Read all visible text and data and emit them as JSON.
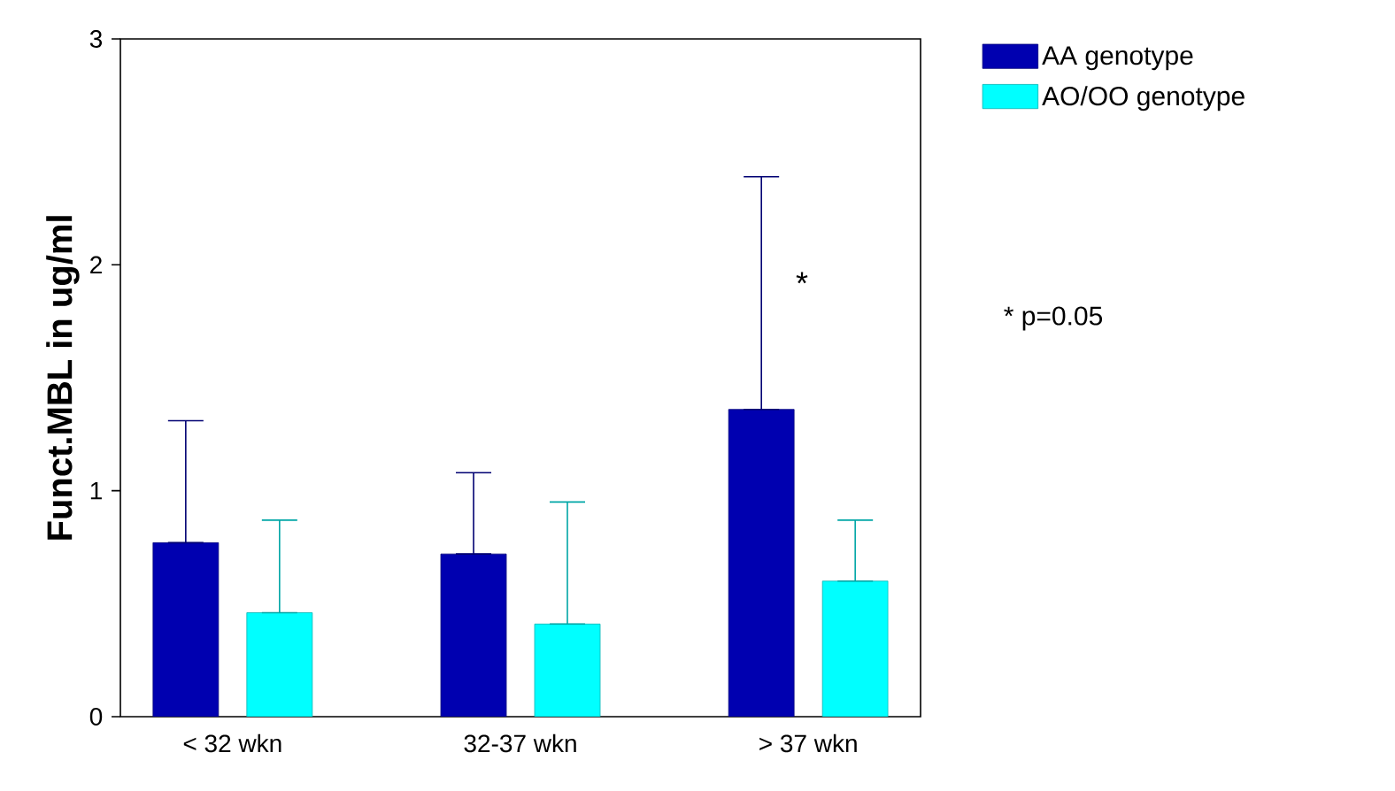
{
  "chart_data": {
    "type": "bar",
    "ylabel": "Funct.MBL in ug/ml",
    "categories": [
      "< 32 wkn",
      "32-37 wkn",
      "> 37 wkn"
    ],
    "series": [
      {
        "name": "AA genotype",
        "color": "#0000b0",
        "values": [
          0.77,
          0.72,
          1.36
        ],
        "errors": [
          [
            0.77,
            1.31
          ],
          [
            0.72,
            1.08
          ],
          [
            1.36,
            2.39
          ]
        ]
      },
      {
        "name": "AO/OO genotype",
        "color": "#00ffff",
        "values": [
          0.46,
          0.41,
          0.6
        ],
        "errors": [
          [
            0.46,
            0.87
          ],
          [
            0.41,
            0.95
          ],
          [
            0.6,
            0.87
          ]
        ]
      }
    ],
    "ylim": [
      0,
      3
    ],
    "yticks": [
      0,
      1,
      2,
      3
    ],
    "grid": false,
    "legend": "top right",
    "annotations": [
      "*",
      "* p=0.05"
    ]
  }
}
